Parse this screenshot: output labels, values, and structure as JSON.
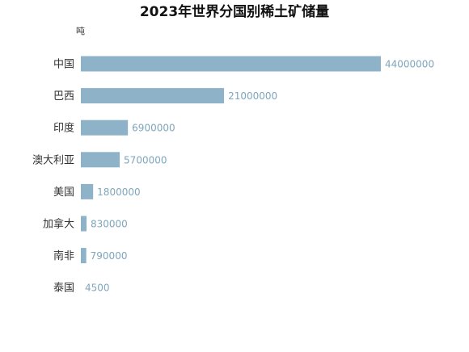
{
  "chart_data": {
    "type": "bar",
    "orientation": "horizontal",
    "title": "2023年世界分国别稀土矿储量",
    "unit_label": "吨",
    "categories": [
      "中国",
      "巴西",
      "印度",
      "澳大利亚",
      "美国",
      "加拿大",
      "南非",
      "泰国"
    ],
    "values": [
      44000000,
      21000000,
      6900000,
      5700000,
      1800000,
      830000,
      790000,
      4500
    ],
    "value_labels": [
      "44000000",
      "21000000",
      "6900000",
      "5700000",
      "1800000",
      "830000",
      "790000",
      "4500"
    ],
    "xlim": [
      0,
      44000000
    ],
    "grid": false,
    "legend": "none",
    "bar_color": "#8eb3c8",
    "label_color": "#7ea6bd"
  }
}
